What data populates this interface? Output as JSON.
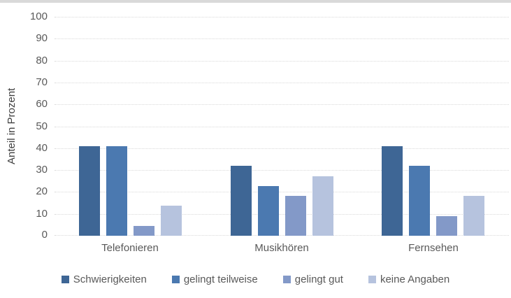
{
  "page": {
    "background": "#ffffff",
    "top_strip_color": "#d9d9d9"
  },
  "chart_data": {
    "type": "bar",
    "title": "",
    "xlabel": "",
    "ylabel": "Anteil in Prozent",
    "ylim": [
      0,
      100
    ],
    "yticks": [
      0,
      10,
      20,
      30,
      40,
      50,
      60,
      70,
      80,
      90,
      100
    ],
    "grid": "horizontal-dotted",
    "legend_position": "bottom",
    "categories": [
      "Telefonieren",
      "Musikhören",
      "Fernsehen"
    ],
    "series": [
      {
        "name": "Schwierigkeiten",
        "color": "#3e6695",
        "values": [
          40.9,
          31.8,
          40.9
        ]
      },
      {
        "name": "gelingt teilweise",
        "color": "#4b79b0",
        "values": [
          40.9,
          22.7,
          31.8
        ]
      },
      {
        "name": "gelingt gut",
        "color": "#8399c8",
        "values": [
          4.5,
          18.2,
          9.1
        ]
      },
      {
        "name": "keine Angaben",
        "color": "#b6c3de",
        "values": [
          13.6,
          27.3,
          18.2
        ]
      }
    ]
  }
}
